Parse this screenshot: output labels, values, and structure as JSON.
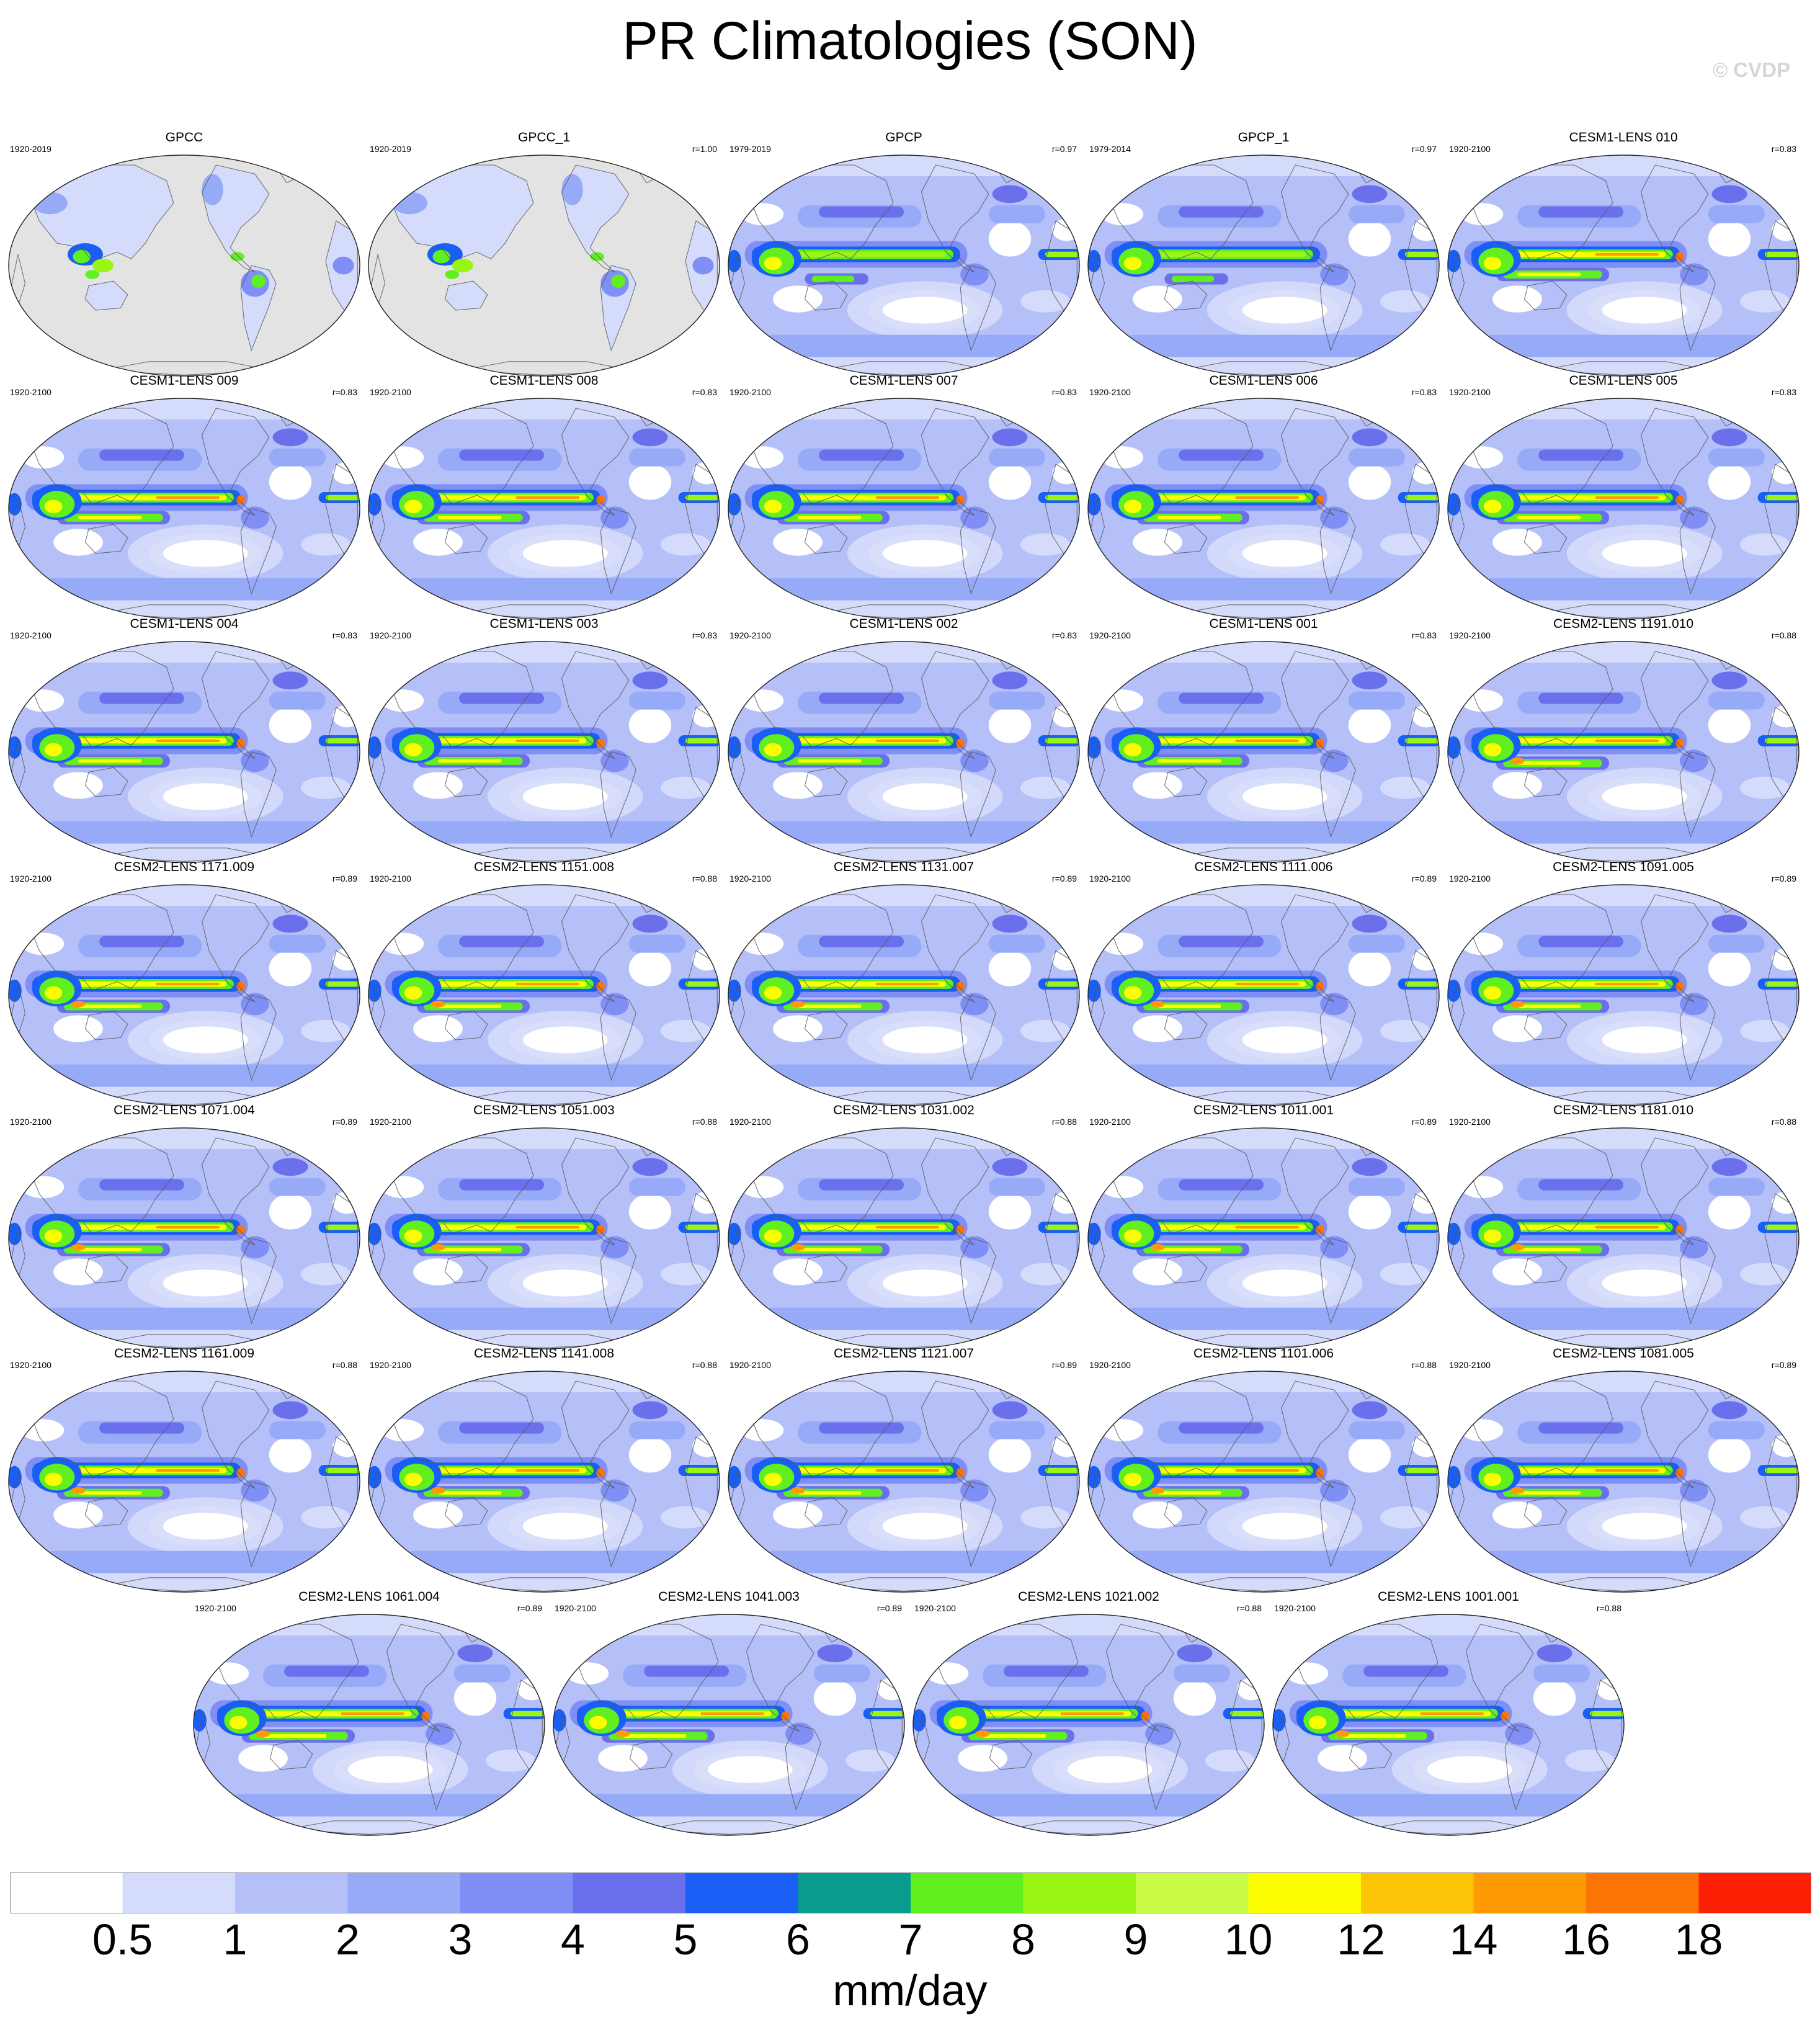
{
  "title": "PR Climatologies (SON)",
  "copyright": "© CVDP",
  "panels": [
    {
      "name": "GPCC",
      "period": "1920-2019",
      "r": "",
      "style": "obs_land"
    },
    {
      "name": "GPCC_1",
      "period": "1920-2019",
      "r": "r=1.00",
      "style": "obs_land"
    },
    {
      "name": "GPCP",
      "period": "1979-2019",
      "r": "r=0.97",
      "style": "obs"
    },
    {
      "name": "GPCP_1",
      "period": "1979-2014",
      "r": "r=0.97",
      "style": "obs"
    },
    {
      "name": "CESM1-LENS 010",
      "period": "1920-2100",
      "r": "r=0.83",
      "style": "cesm1"
    },
    {
      "name": "CESM1-LENS 009",
      "period": "1920-2100",
      "r": "r=0.83",
      "style": "cesm1"
    },
    {
      "name": "CESM1-LENS 008",
      "period": "1920-2100",
      "r": "r=0.83",
      "style": "cesm1"
    },
    {
      "name": "CESM1-LENS 007",
      "period": "1920-2100",
      "r": "r=0.83",
      "style": "cesm1"
    },
    {
      "name": "CESM1-LENS 006",
      "period": "1920-2100",
      "r": "r=0.83",
      "style": "cesm1"
    },
    {
      "name": "CESM1-LENS 005",
      "period": "1920-2100",
      "r": "r=0.83",
      "style": "cesm1"
    },
    {
      "name": "CESM1-LENS 004",
      "period": "1920-2100",
      "r": "r=0.83",
      "style": "cesm1"
    },
    {
      "name": "CESM1-LENS 003",
      "period": "1920-2100",
      "r": "r=0.83",
      "style": "cesm1"
    },
    {
      "name": "CESM1-LENS 002",
      "period": "1920-2100",
      "r": "r=0.83",
      "style": "cesm1"
    },
    {
      "name": "CESM1-LENS 001",
      "period": "1920-2100",
      "r": "r=0.83",
      "style": "cesm1"
    },
    {
      "name": "CESM2-LENS 1191.010",
      "period": "1920-2100",
      "r": "r=0.88",
      "style": "cesm2"
    },
    {
      "name": "CESM2-LENS 1171.009",
      "period": "1920-2100",
      "r": "r=0.89",
      "style": "cesm2"
    },
    {
      "name": "CESM2-LENS 1151.008",
      "period": "1920-2100",
      "r": "r=0.88",
      "style": "cesm2"
    },
    {
      "name": "CESM2-LENS 1131.007",
      "period": "1920-2100",
      "r": "r=0.89",
      "style": "cesm2"
    },
    {
      "name": "CESM2-LENS 1111.006",
      "period": "1920-2100",
      "r": "r=0.89",
      "style": "cesm2"
    },
    {
      "name": "CESM2-LENS 1091.005",
      "period": "1920-2100",
      "r": "r=0.89",
      "style": "cesm2"
    },
    {
      "name": "CESM2-LENS 1071.004",
      "period": "1920-2100",
      "r": "r=0.89",
      "style": "cesm2"
    },
    {
      "name": "CESM2-LENS 1051.003",
      "period": "1920-2100",
      "r": "r=0.88",
      "style": "cesm2"
    },
    {
      "name": "CESM2-LENS 1031.002",
      "period": "1920-2100",
      "r": "r=0.88",
      "style": "cesm2"
    },
    {
      "name": "CESM2-LENS 1011.001",
      "period": "1920-2100",
      "r": "r=0.89",
      "style": "cesm2"
    },
    {
      "name": "CESM2-LENS 1181.010",
      "period": "1920-2100",
      "r": "r=0.88",
      "style": "cesm2"
    },
    {
      "name": "CESM2-LENS 1161.009",
      "period": "1920-2100",
      "r": "r=0.88",
      "style": "cesm2"
    },
    {
      "name": "CESM2-LENS 1141.008",
      "period": "1920-2100",
      "r": "r=0.88",
      "style": "cesm2"
    },
    {
      "name": "CESM2-LENS 1121.007",
      "period": "1920-2100",
      "r": "r=0.89",
      "style": "cesm2"
    },
    {
      "name": "CESM2-LENS 1101.006",
      "period": "1920-2100",
      "r": "r=0.88",
      "style": "cesm2"
    },
    {
      "name": "CESM2-LENS 1081.005",
      "period": "1920-2100",
      "r": "r=0.89",
      "style": "cesm2"
    },
    {
      "name": "CESM2-LENS 1061.004",
      "period": "1920-2100",
      "r": "r=0.89",
      "style": "cesm2"
    },
    {
      "name": "CESM2-LENS 1041.003",
      "period": "1920-2100",
      "r": "r=0.89",
      "style": "cesm2"
    },
    {
      "name": "CESM2-LENS 1021.002",
      "period": "1920-2100",
      "r": "r=0.88",
      "style": "cesm2"
    },
    {
      "name": "CESM2-LENS 1001.001",
      "period": "1920-2100",
      "r": "r=0.88",
      "style": "cesm2"
    }
  ],
  "chart_data": {
    "type": "heatmap",
    "title": "PR Climatologies (SON)",
    "units": "mm/day",
    "colorbar_levels": [
      "0.5",
      "1",
      "2",
      "3",
      "4",
      "5",
      "6",
      "7",
      "8",
      "9",
      "10",
      "12",
      "14",
      "16",
      "18"
    ],
    "colorbar_colors": [
      "#ffffff",
      "#d5dcfb",
      "#b5c0f8",
      "#96aaf8",
      "#7f8ff5",
      "#6a70ec",
      "#1a5ff5",
      "#0a9b8f",
      "#60f020",
      "#9af514",
      "#c9fa45",
      "#fdfd02",
      "#fcc407",
      "#fe9a04",
      "#fc7306",
      "#fb1f04"
    ],
    "land_mask_color": "#e3e3e3"
  }
}
